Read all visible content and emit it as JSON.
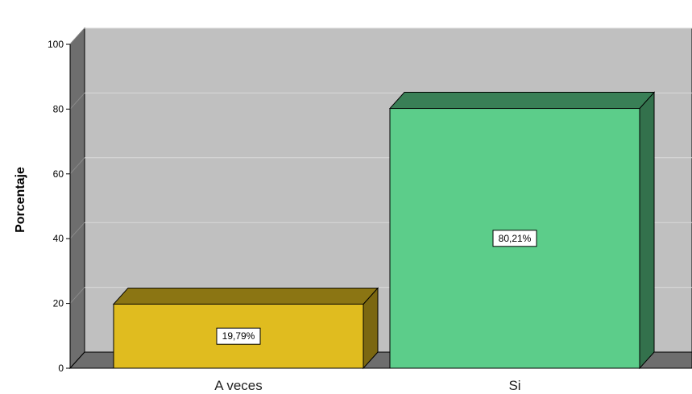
{
  "chart_data": {
    "type": "bar",
    "categories": [
      "A veces",
      "Si"
    ],
    "values": [
      19.79,
      80.21
    ],
    "data_labels": [
      "19,79%",
      "80,21%"
    ],
    "colors": [
      "#e0bc1f",
      "#5ccd8a"
    ],
    "ylabel": "Porcentaje",
    "ylim": [
      0,
      100
    ],
    "yticks": [
      "0",
      "20",
      "40",
      "60",
      "80",
      "100"
    ],
    "grid": true
  }
}
